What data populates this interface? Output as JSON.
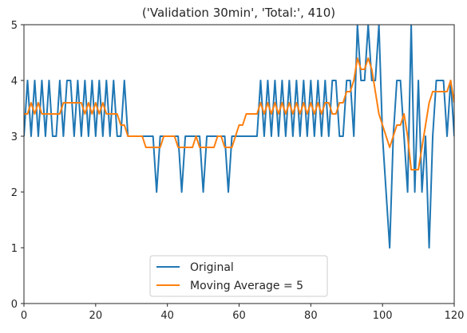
{
  "chart_data": {
    "type": "line",
    "title": "('Validation 30min', 'Total:', 410)",
    "xlabel": "",
    "ylabel": "",
    "xlim": [
      0,
      120
    ],
    "ylim": [
      0,
      5
    ],
    "xticks": [
      0,
      20,
      40,
      60,
      80,
      100,
      120
    ],
    "yticks": [
      0,
      1,
      2,
      3,
      4,
      5
    ],
    "grid": false,
    "legend_position": "bottom-center",
    "series": [
      {
        "name": "Original",
        "color": "#1f77b4",
        "values": [
          3,
          4,
          3,
          4,
          3,
          4,
          3,
          4,
          3,
          3,
          4,
          3,
          4,
          4,
          3,
          4,
          3,
          4,
          3,
          4,
          3,
          4,
          3,
          4,
          3,
          4,
          3,
          3,
          4,
          3,
          3,
          3,
          3,
          3,
          3,
          3,
          3,
          2,
          3,
          3,
          3,
          3,
          3,
          3,
          2,
          3,
          3,
          3,
          3,
          3,
          2,
          3,
          3,
          3,
          3,
          3,
          3,
          2,
          3,
          3,
          3,
          3,
          3,
          3,
          3,
          3,
          4,
          3,
          4,
          3,
          4,
          3,
          4,
          3,
          4,
          3,
          4,
          3,
          4,
          3,
          4,
          3,
          4,
          3,
          4,
          3,
          4,
          4,
          3,
          3,
          4,
          4,
          3,
          5,
          4,
          4,
          5,
          4,
          4,
          5,
          3,
          2,
          1,
          3,
          4,
          4,
          3,
          2,
          5,
          2,
          4,
          2,
          3,
          1,
          3,
          4,
          4,
          4,
          3,
          4,
          3
        ]
      },
      {
        "name": "Moving Average = 5",
        "color": "#ff7f0e",
        "values": [
          3.4,
          3.4,
          3.6,
          3.4,
          3.6,
          3.4,
          3.4,
          3.4,
          3.4,
          3.4,
          3.4,
          3.6,
          3.6,
          3.6,
          3.6,
          3.6,
          3.6,
          3.4,
          3.6,
          3.4,
          3.6,
          3.4,
          3.6,
          3.4,
          3.4,
          3.4,
          3.4,
          3.2,
          3.2,
          3.0,
          3.0,
          3.0,
          3.0,
          3.0,
          2.8,
          2.8,
          2.8,
          2.8,
          2.8,
          3.0,
          3.0,
          3.0,
          3.0,
          2.8,
          2.8,
          2.8,
          2.8,
          2.8,
          3.0,
          2.8,
          2.8,
          2.8,
          2.8,
          2.8,
          3.0,
          3.0,
          2.8,
          2.8,
          2.8,
          3.0,
          3.2,
          3.2,
          3.4,
          3.4,
          3.4,
          3.4,
          3.6,
          3.4,
          3.6,
          3.4,
          3.6,
          3.4,
          3.6,
          3.4,
          3.6,
          3.4,
          3.6,
          3.4,
          3.6,
          3.4,
          3.6,
          3.4,
          3.6,
          3.4,
          3.6,
          3.6,
          3.4,
          3.4,
          3.6,
          3.6,
          3.8,
          3.8,
          4.0,
          4.4,
          4.2,
          4.2,
          4.4,
          4.2,
          3.8,
          3.4,
          3.2,
          3.0,
          2.8,
          3.0,
          3.2,
          3.2,
          3.4,
          3.0,
          2.4,
          2.4,
          2.4,
          2.8,
          3.2,
          3.6,
          3.8,
          3.8,
          3.8,
          3.8,
          3.8,
          4.0,
          3.6
        ]
      }
    ]
  }
}
